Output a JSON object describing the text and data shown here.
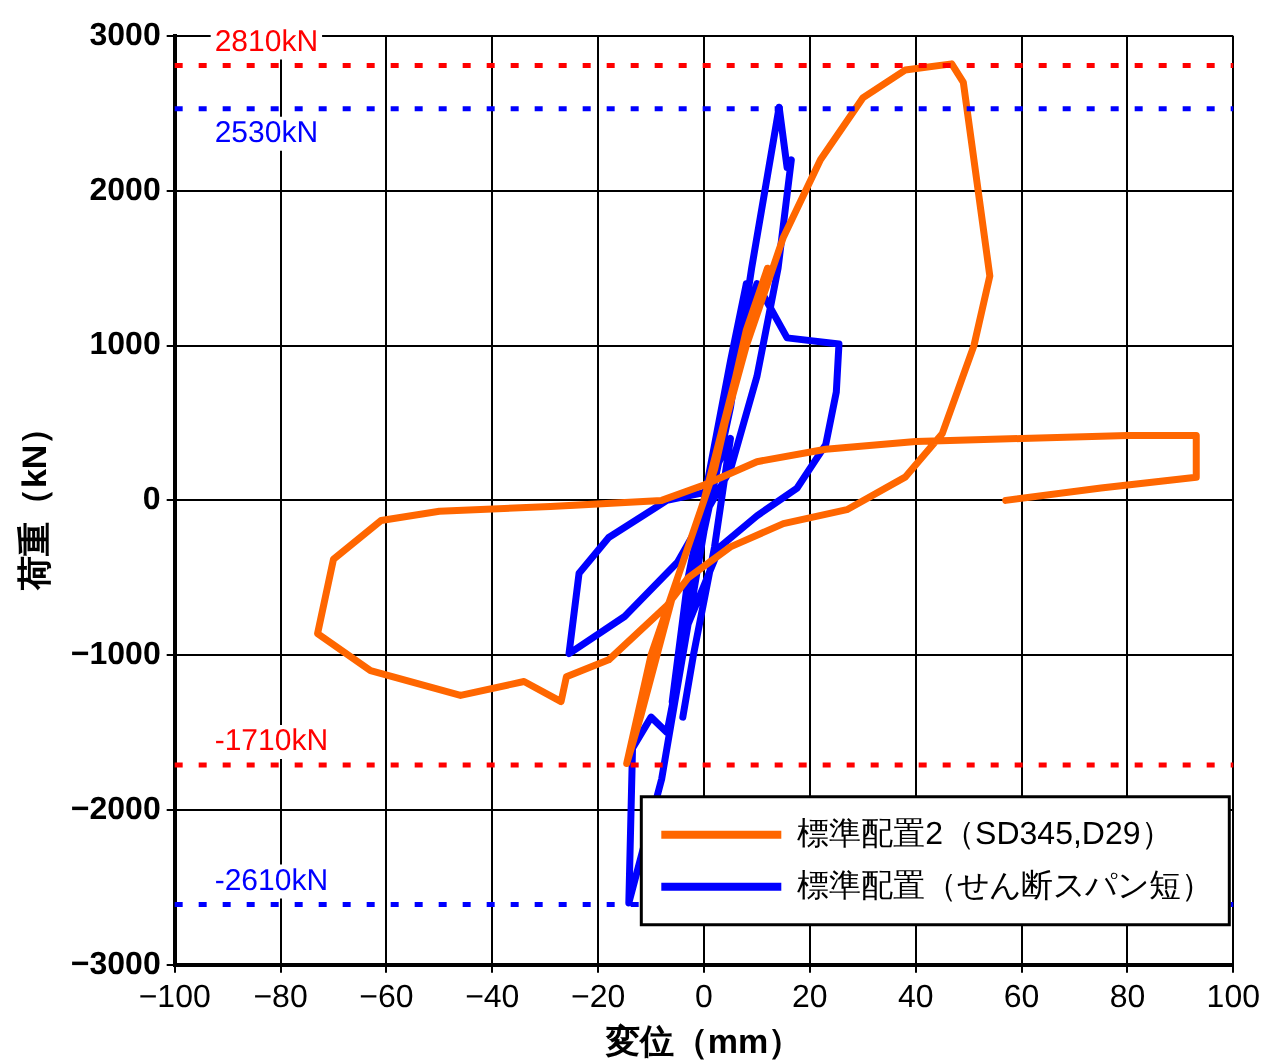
{
  "chart_data": {
    "type": "line",
    "xlabel": "変位（mm）",
    "ylabel": "荷重（kN）",
    "xlim": [
      -100,
      100
    ],
    "xticks": [
      -100,
      -80,
      -60,
      -40,
      -20,
      0,
      20,
      40,
      60,
      80,
      100
    ],
    "ylim": [
      -3000,
      3000
    ],
    "yticks": [
      -3000,
      -2000,
      -1000,
      0,
      1000,
      2000,
      3000
    ],
    "grid": true,
    "legend": "bottom right",
    "marker": "none",
    "line_style": "solid",
    "ref_lines": [
      {
        "axis": "y",
        "value": 2810,
        "label": "2810kN",
        "color": "#ff0000",
        "line_style": "dotted"
      },
      {
        "axis": "y",
        "value": 2530,
        "label": "2530kN",
        "color": "#0000ff",
        "line_style": "dotted"
      },
      {
        "axis": "y",
        "value": -1710,
        "label": "-1710kN",
        "color": "#ff0000",
        "line_style": "dotted"
      },
      {
        "axis": "y",
        "value": -2610,
        "label": "-2610kN",
        "color": "#0000ff",
        "line_style": "dotted"
      }
    ],
    "series": [
      {
        "name": "標準配置2（SD345,D29）",
        "color": "#ff6600",
        "x": [
          0,
          6,
          12,
          8,
          2,
          -5,
          -10,
          -14.6,
          -12,
          -5,
          0,
          8,
          15,
          22,
          30,
          38,
          46.8,
          49,
          54,
          51,
          45,
          38,
          27,
          15,
          5,
          -3,
          -7,
          -18,
          -26,
          -27,
          -34,
          -46,
          -63,
          -73,
          -70,
          -61,
          -50,
          -29,
          -8,
          0,
          10,
          23,
          40,
          60,
          80,
          93,
          93,
          75,
          57
        ],
        "values": [
          0,
          800,
          1500,
          1100,
          200,
          -500,
          -1000,
          -1700,
          -1400,
          -500,
          0,
          1000,
          1700,
          2200,
          2600,
          2780,
          2820,
          2700,
          1450,
          1000,
          430,
          150,
          -60,
          -150,
          -300,
          -500,
          -680,
          -1030,
          -1140,
          -1300,
          -1170,
          -1260,
          -1100,
          -860,
          -380,
          -130,
          -70,
          -40,
          0,
          100,
          250,
          330,
          380,
          400,
          420,
          420,
          150,
          80,
          0
        ]
      },
      {
        "name": "標準配置（せん断スパン短）",
        "color": "#0000ff",
        "x": [
          0,
          4,
          8,
          5,
          0,
          -3,
          -6,
          -3,
          0,
          5,
          10,
          15.7,
          25.5,
          25,
          23,
          17.6,
          10,
          3,
          -3,
          -7,
          -10,
          -13.5,
          -14.2,
          -8,
          -4,
          0,
          5,
          9,
          12,
          14.2,
          15.7,
          16.5,
          14,
          10,
          5,
          -5,
          -15,
          -25.5,
          -23.6,
          -18,
          -7,
          0,
          5,
          2,
          -2,
          -4
        ],
        "values": [
          0,
          700,
          1400,
          900,
          0,
          -600,
          -1300,
          -500,
          0,
          800,
          1400,
          1050,
          1010,
          700,
          360,
          80,
          -100,
          -300,
          -800,
          -1500,
          -1400,
          -1600,
          -2600,
          -1800,
          -1000,
          -200,
          600,
          1500,
          2100,
          2540,
          2150,
          2200,
          1500,
          800,
          200,
          -400,
          -750,
          -990,
          -470,
          -240,
          0,
          50,
          400,
          -300,
          -1000,
          -1400
        ]
      }
    ]
  }
}
